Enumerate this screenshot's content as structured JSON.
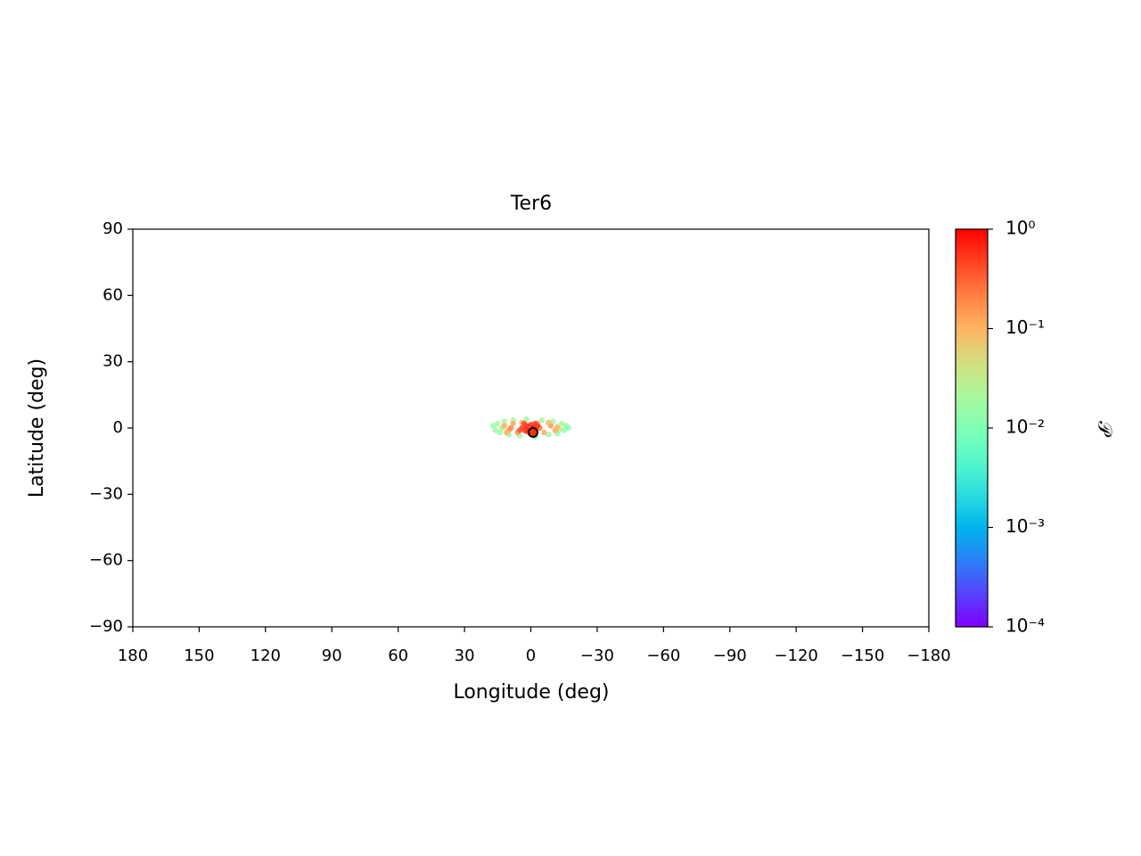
{
  "chart_data": {
    "type": "scatter",
    "title": "Ter6",
    "xlabel": "Longitude (deg)",
    "ylabel": "Latitude (deg)",
    "xlim": [
      180,
      -180
    ],
    "ylim": [
      -90,
      90
    ],
    "xticks": [
      180,
      150,
      120,
      90,
      60,
      30,
      0,
      {
        "value": -30,
        "label": "−30"
      },
      {
        "value": -60,
        "label": "−60"
      },
      {
        "value": -90,
        "label": "−90"
      },
      {
        "value": -120,
        "label": "−120"
      },
      {
        "value": -150,
        "label": "−150"
      },
      {
        "value": -180,
        "label": "−180"
      }
    ],
    "yticks": [
      {
        "value": -90,
        "label": "−90"
      },
      {
        "value": -60,
        "label": "−60"
      },
      {
        "value": -30,
        "label": "−30"
      },
      0,
      30,
      60,
      90
    ],
    "x": [
      17,
      16,
      15,
      14,
      12,
      10,
      8,
      5,
      2,
      -2,
      -5,
      -8,
      -10,
      -12,
      -14,
      -15,
      -16,
      -17,
      13,
      -13,
      12,
      10,
      8,
      6,
      4,
      0,
      -3,
      -6,
      -9,
      -11,
      -12,
      9,
      3,
      -4,
      11,
      -8,
      4,
      2,
      1,
      0,
      -1,
      -2,
      -3,
      5,
      3,
      -2,
      2
    ],
    "y": [
      1,
      -1,
      2,
      -2,
      3,
      -3,
      3.5,
      -3.5,
      4,
      -4,
      3.5,
      -3,
      3,
      -2.5,
      2,
      -1,
      1,
      0,
      0,
      -0.5,
      1,
      -1,
      2,
      -2,
      2.5,
      -2.5,
      2,
      -2,
      1,
      -1,
      0.5,
      0,
      -1,
      0,
      -2,
      2.5,
      0,
      1,
      -1,
      1.5,
      0,
      -1,
      1,
      -1,
      2,
      2,
      -1.5
    ],
    "values": [
      0.015,
      0.015,
      0.02,
      0.015,
      0.02,
      0.015,
      0.02,
      0.015,
      0.02,
      0.015,
      0.02,
      0.015,
      0.02,
      0.015,
      0.02,
      0.015,
      0.015,
      0.012,
      0.03,
      0.03,
      0.12,
      0.15,
      0.12,
      0.15,
      0.1,
      0.15,
      0.12,
      0.12,
      0.15,
      0.12,
      0.1,
      0.2,
      0.25,
      0.25,
      0.1,
      0.1,
      0.5,
      0.7,
      0.9,
      0.6,
      1,
      0.8,
      0.6,
      0.4,
      0.45,
      0.5,
      0.55
    ],
    "marker": {
      "x": -1,
      "y": -2,
      "color": "#ff3000",
      "edgecolor": "#000000"
    },
    "colorbar": {
      "label": "𝒫",
      "log": true,
      "colormap": "rainbow",
      "lim": [
        0.0001,
        1
      ],
      "ticks": [
        {
          "value": 0.0001,
          "label": "10⁻⁴"
        },
        {
          "value": 0.001,
          "label": "10⁻³"
        },
        {
          "value": 0.01,
          "label": "10⁻²"
        },
        {
          "value": 0.1,
          "label": "10⁻¹"
        },
        {
          "value": 1,
          "label": "10⁰"
        }
      ]
    }
  }
}
